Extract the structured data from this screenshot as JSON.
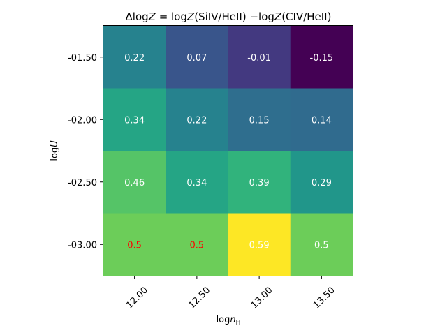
{
  "chart_data": {
    "type": "heatmap",
    "title": "ΔlogZ = logZ(SiIV/HeII)  −logZ(CIV/HeII)",
    "xlabel": "logn_H",
    "ylabel": "logU",
    "x_categories": [
      "12.00",
      "12.50",
      "13.00",
      "13.50"
    ],
    "y_categories": [
      "-01.50",
      "-02.00",
      "-02.50",
      "-03.00"
    ],
    "values": [
      [
        0.22,
        0.07,
        -0.01,
        -0.15
      ],
      [
        0.34,
        0.22,
        0.15,
        0.14
      ],
      [
        0.46,
        0.34,
        0.39,
        0.29
      ],
      [
        0.5,
        0.5,
        0.59,
        0.5
      ]
    ],
    "cell_labels": [
      [
        "0.22",
        "0.07",
        "-0.01",
        "-0.15"
      ],
      [
        "0.34",
        "0.22",
        "0.15",
        "0.14"
      ],
      [
        "0.46",
        "0.34",
        "0.39",
        "0.29"
      ],
      [
        "0.5",
        "0.5",
        "0.59",
        "0.5"
      ]
    ],
    "cell_label_colors": [
      [
        "#ffffff",
        "#ffffff",
        "#ffffff",
        "#ffffff"
      ],
      [
        "#ffffff",
        "#ffffff",
        "#ffffff",
        "#ffffff"
      ],
      [
        "#ffffff",
        "#ffffff",
        "#ffffff",
        "#ffffff"
      ],
      [
        "#ff0000",
        "#ff0000",
        "#ffffff",
        "#ffffff"
      ]
    ],
    "colormap": "viridis",
    "vmin": -0.15,
    "vmax": 0.59,
    "grid": false,
    "legend": "none"
  }
}
